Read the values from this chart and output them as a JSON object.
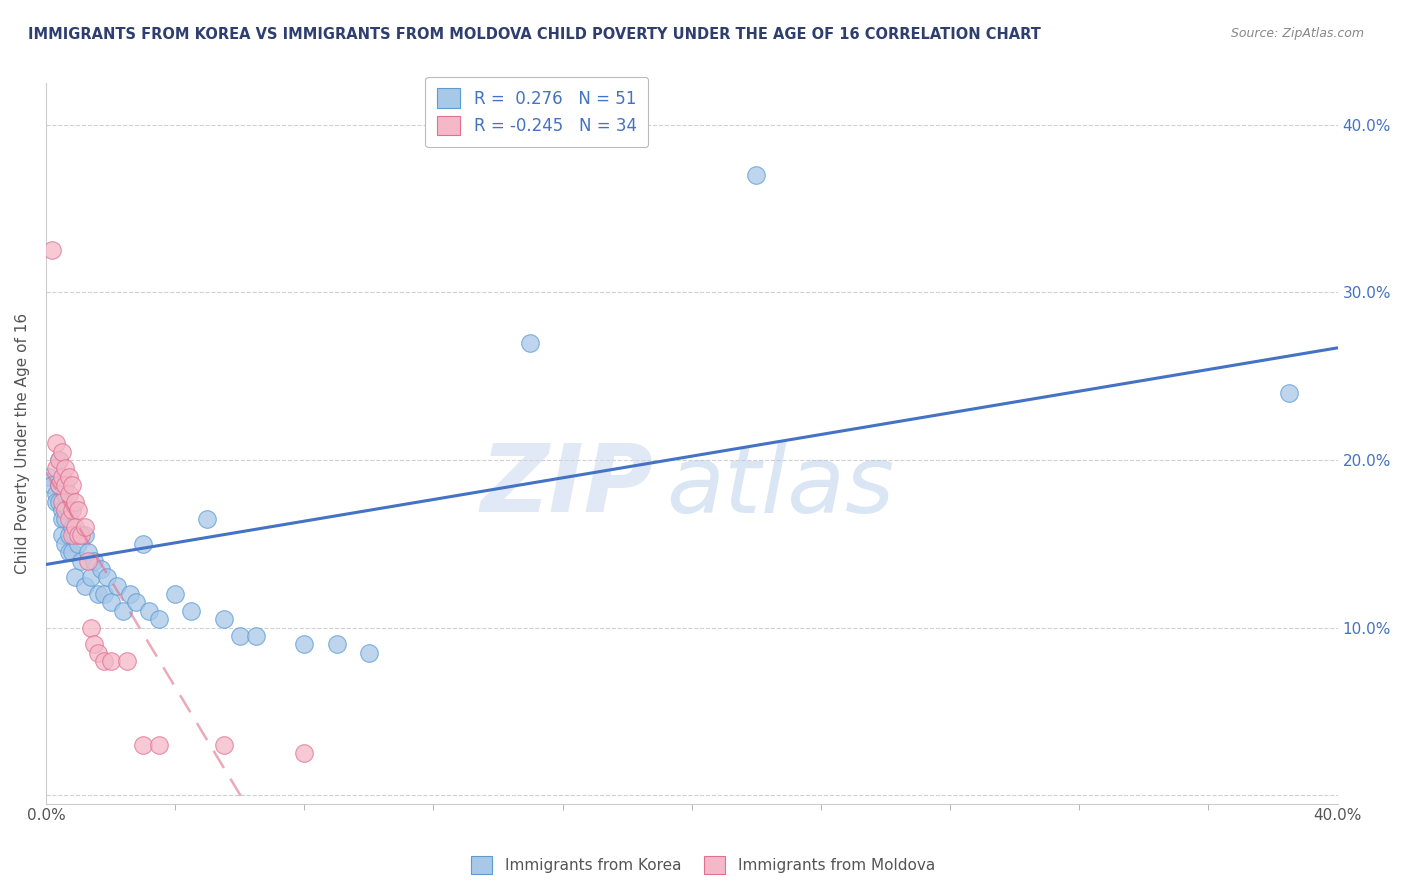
{
  "title": "IMMIGRANTS FROM KOREA VS IMMIGRANTS FROM MOLDOVA CHILD POVERTY UNDER THE AGE OF 16 CORRELATION CHART",
  "source": "Source: ZipAtlas.com",
  "ylabel": "Child Poverty Under the Age of 16",
  "xlabel_korea": "Immigrants from Korea",
  "xlabel_moldova": "Immigrants from Moldova",
  "xlim": [
    0.0,
    0.4
  ],
  "ylim": [
    -0.005,
    0.425
  ],
  "yticks_right": [
    0.1,
    0.2,
    0.3,
    0.4
  ],
  "ytick_right_labels": [
    "10.0%",
    "20.0%",
    "30.0%",
    "40.0%"
  ],
  "xtick_minor_count": 10,
  "korea_R": 0.276,
  "korea_N": 51,
  "moldova_R": -0.245,
  "moldova_N": 34,
  "korea_color": "#a8c8e8",
  "moldova_color": "#f4b8c8",
  "korea_edge_color": "#5b9bd5",
  "moldova_edge_color": "#e07090",
  "korea_line_color": "#4472c4",
  "moldova_line_color": "#e07090",
  "korea_scatter": [
    [
      0.001,
      0.19
    ],
    [
      0.002,
      0.185
    ],
    [
      0.003,
      0.18
    ],
    [
      0.003,
      0.175
    ],
    [
      0.004,
      0.2
    ],
    [
      0.004,
      0.185
    ],
    [
      0.004,
      0.175
    ],
    [
      0.005,
      0.17
    ],
    [
      0.005,
      0.165
    ],
    [
      0.005,
      0.155
    ],
    [
      0.006,
      0.18
    ],
    [
      0.006,
      0.165
    ],
    [
      0.006,
      0.15
    ],
    [
      0.007,
      0.17
    ],
    [
      0.007,
      0.155
    ],
    [
      0.007,
      0.145
    ],
    [
      0.008,
      0.16
    ],
    [
      0.008,
      0.145
    ],
    [
      0.009,
      0.155
    ],
    [
      0.009,
      0.13
    ],
    [
      0.01,
      0.15
    ],
    [
      0.011,
      0.14
    ],
    [
      0.012,
      0.155
    ],
    [
      0.012,
      0.125
    ],
    [
      0.013,
      0.145
    ],
    [
      0.014,
      0.13
    ],
    [
      0.015,
      0.14
    ],
    [
      0.016,
      0.12
    ],
    [
      0.017,
      0.135
    ],
    [
      0.018,
      0.12
    ],
    [
      0.019,
      0.13
    ],
    [
      0.02,
      0.115
    ],
    [
      0.022,
      0.125
    ],
    [
      0.024,
      0.11
    ],
    [
      0.026,
      0.12
    ],
    [
      0.028,
      0.115
    ],
    [
      0.03,
      0.15
    ],
    [
      0.032,
      0.11
    ],
    [
      0.035,
      0.105
    ],
    [
      0.04,
      0.12
    ],
    [
      0.045,
      0.11
    ],
    [
      0.05,
      0.165
    ],
    [
      0.055,
      0.105
    ],
    [
      0.06,
      0.095
    ],
    [
      0.065,
      0.095
    ],
    [
      0.08,
      0.09
    ],
    [
      0.09,
      0.09
    ],
    [
      0.1,
      0.085
    ],
    [
      0.15,
      0.27
    ],
    [
      0.22,
      0.37
    ],
    [
      0.385,
      0.24
    ]
  ],
  "moldova_scatter": [
    [
      0.002,
      0.325
    ],
    [
      0.003,
      0.21
    ],
    [
      0.003,
      0.195
    ],
    [
      0.004,
      0.2
    ],
    [
      0.004,
      0.185
    ],
    [
      0.005,
      0.205
    ],
    [
      0.005,
      0.19
    ],
    [
      0.005,
      0.175
    ],
    [
      0.006,
      0.195
    ],
    [
      0.006,
      0.185
    ],
    [
      0.006,
      0.17
    ],
    [
      0.007,
      0.19
    ],
    [
      0.007,
      0.18
    ],
    [
      0.007,
      0.165
    ],
    [
      0.008,
      0.185
    ],
    [
      0.008,
      0.17
    ],
    [
      0.008,
      0.155
    ],
    [
      0.009,
      0.175
    ],
    [
      0.009,
      0.16
    ],
    [
      0.01,
      0.17
    ],
    [
      0.01,
      0.155
    ],
    [
      0.011,
      0.155
    ],
    [
      0.012,
      0.16
    ],
    [
      0.013,
      0.14
    ],
    [
      0.014,
      0.1
    ],
    [
      0.015,
      0.09
    ],
    [
      0.016,
      0.085
    ],
    [
      0.018,
      0.08
    ],
    [
      0.02,
      0.08
    ],
    [
      0.025,
      0.08
    ],
    [
      0.03,
      0.03
    ],
    [
      0.035,
      0.03
    ],
    [
      0.055,
      0.03
    ],
    [
      0.08,
      0.025
    ]
  ],
  "watermark_zip": "ZIP",
  "watermark_atlas": "atlas",
  "background_color": "#ffffff",
  "grid_color": "#d0d0d0",
  "title_color": "#2e3f6f",
  "source_color": "#888888",
  "axis_label_color": "#555555",
  "right_tick_color": "#4472c4"
}
